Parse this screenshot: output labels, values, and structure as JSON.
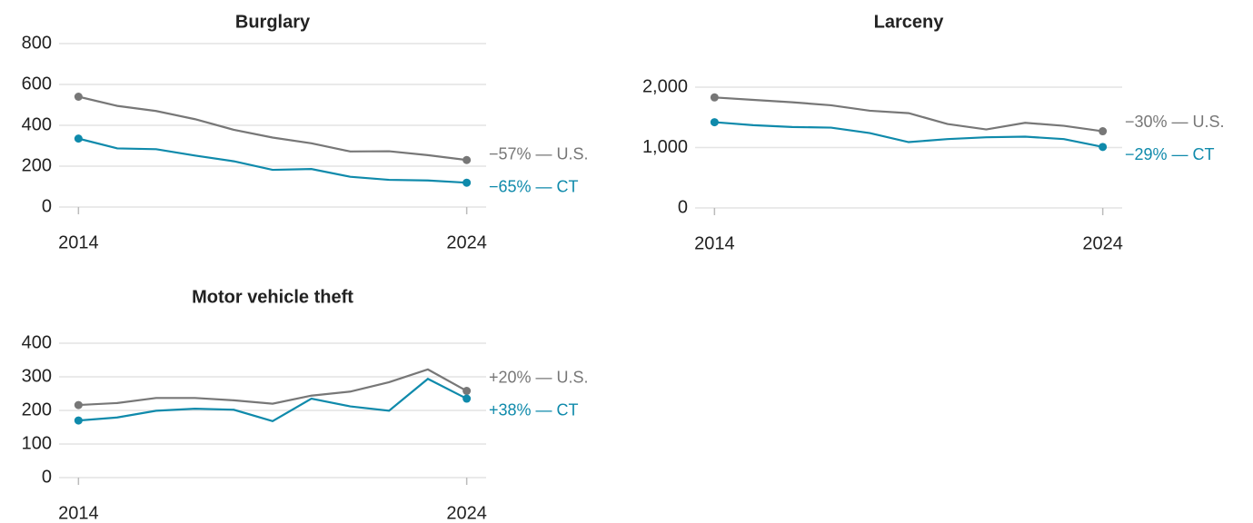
{
  "chart_data": [
    {
      "type": "line",
      "title": "Burglary",
      "x": [
        2014,
        2015,
        2016,
        2017,
        2018,
        2019,
        2020,
        2021,
        2022,
        2023,
        2024
      ],
      "xlim": [
        2013.5,
        2024.5
      ],
      "xticks": [
        2014,
        2024
      ],
      "ylim": [
        0,
        800
      ],
      "yticks": [
        0,
        200,
        400,
        600,
        800
      ],
      "grid": true,
      "series": [
        {
          "label": "−57% — U.S.",
          "color": "#777777",
          "values": [
            540,
            495,
            470,
            430,
            378,
            340,
            312,
            272,
            273,
            254,
            230
          ]
        },
        {
          "label": "−65% — CT",
          "color": "#0f8aab",
          "values": [
            335,
            287,
            283,
            252,
            224,
            182,
            186,
            148,
            133,
            130,
            119
          ]
        }
      ]
    },
    {
      "type": "line",
      "title": "Larceny",
      "x": [
        2014,
        2015,
        2016,
        2017,
        2018,
        2019,
        2020,
        2021,
        2022,
        2023,
        2024
      ],
      "xlim": [
        2013.5,
        2024.5
      ],
      "xticks": [
        2014,
        2024
      ],
      "ylim": [
        0,
        2000
      ],
      "yticks": [
        0,
        {
          "value": 1000,
          "label": "1,000"
        },
        {
          "value": 2000,
          "label": "2,000"
        }
      ],
      "grid": true,
      "series": [
        {
          "label": "−30% — U.S.",
          "color": "#777777",
          "values": [
            1830,
            1790,
            1750,
            1700,
            1610,
            1570,
            1390,
            1300,
            1410,
            1360,
            1270
          ]
        },
        {
          "label": "−29% — CT",
          "color": "#0f8aab",
          "values": [
            1420,
            1370,
            1340,
            1330,
            1240,
            1090,
            1140,
            1170,
            1180,
            1140,
            1010
          ]
        }
      ]
    },
    {
      "type": "line",
      "title": "Motor vehicle theft",
      "x": [
        2014,
        2015,
        2016,
        2017,
        2018,
        2019,
        2020,
        2021,
        2022,
        2023,
        2024
      ],
      "xlim": [
        2013.5,
        2024.5
      ],
      "xticks": [
        2014,
        2024
      ],
      "ylim": [
        0,
        400
      ],
      "yticks": [
        0,
        100,
        200,
        300,
        400
      ],
      "grid": true,
      "series": [
        {
          "label": "+20% — U.S.",
          "color": "#777777",
          "values": [
            216,
            222,
            237,
            237,
            230,
            220,
            244,
            256,
            284,
            322,
            258
          ]
        },
        {
          "label": "+38% — CT",
          "color": "#0f8aab",
          "values": [
            170,
            179,
            199,
            205,
            202,
            168,
            235,
            212,
            199,
            294,
            235
          ]
        }
      ]
    }
  ]
}
